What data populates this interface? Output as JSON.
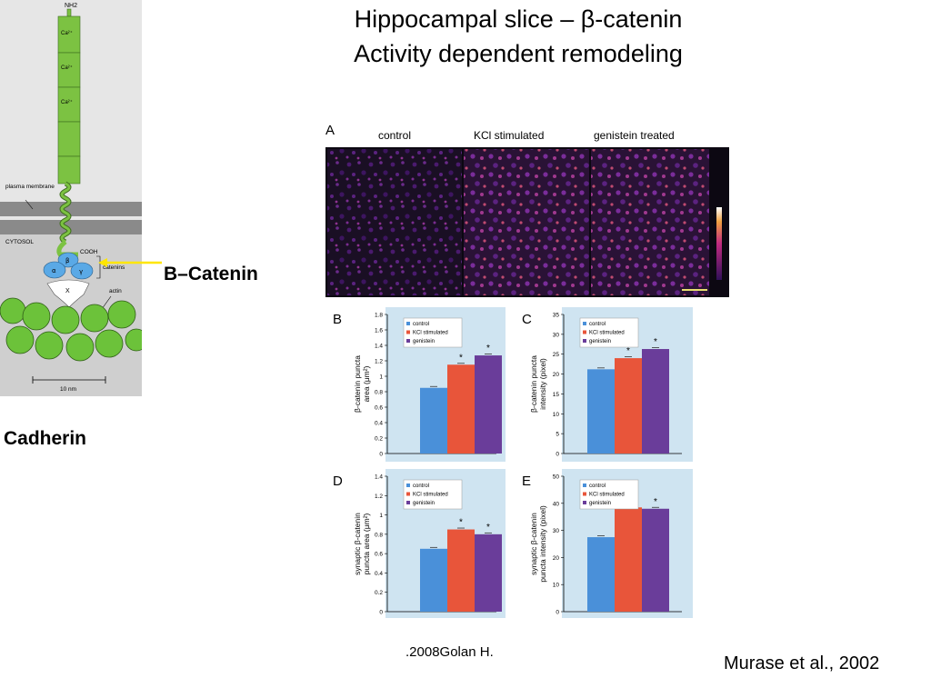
{
  "slide": {
    "title_line1": "Hippocampal slice – β-catenin",
    "title_line2": "Activity dependent remodeling",
    "beta_catenin_label": "Β–Catenin",
    "cadherin_label": "Cadherin",
    "citation_golan": ".2008Golan H.",
    "citation_murase": "Murase et al., 2002"
  },
  "diagram": {
    "nh2": "NH2",
    "ca": "Ca²⁺",
    "plasma_membrane": "plasma membrane",
    "cytosol": "CYTOSOL",
    "cooh": "COOH",
    "alpha": "α",
    "beta": "β",
    "gamma": "γ",
    "catenins": "catenins",
    "x": "X",
    "actin": "actin",
    "scale": "10 nm",
    "colors": {
      "cadherin": "#7cc242",
      "catenin": "#5aa9e6",
      "membrane": "#8a8a8a",
      "background": "#d8d8d8"
    }
  },
  "panel_a": {
    "letter": "A",
    "labels": [
      "control",
      "KCl stimulated",
      "genistein treated"
    ]
  },
  "legend_entries": [
    "control",
    "KCl stimulated",
    "genistein"
  ],
  "series_colors": [
    "#4a90d9",
    "#e8553a",
    "#6a3d9a"
  ],
  "chart_data": [
    {
      "type": "bar",
      "panel": "B",
      "ylabel": "β-catenin puncta area (μm²)",
      "categories": [
        "control",
        "KCl stimulated",
        "genistein"
      ],
      "values": [
        0.85,
        1.15,
        1.27
      ],
      "ylim": [
        0,
        1.8
      ],
      "yticks": [
        "0",
        "0.2",
        "0.4",
        "0.6",
        "0.8",
        "1",
        "1.2",
        "1.4",
        "1.6",
        "1.8"
      ],
      "significance": [
        "",
        "*",
        "*"
      ],
      "legend": "top-left"
    },
    {
      "type": "bar",
      "panel": "C",
      "ylabel": "β-catenin puncta intensity (pixel)",
      "categories": [
        "control",
        "KCl stimulated",
        "genistein"
      ],
      "values": [
        21.2,
        24,
        26.3
      ],
      "ylim": [
        0,
        35
      ],
      "yticks": [
        "0",
        "5",
        "10",
        "15",
        "20",
        "25",
        "30",
        "35"
      ],
      "significance": [
        "",
        "*",
        "*"
      ],
      "legend": "top-left"
    },
    {
      "type": "bar",
      "panel": "D",
      "ylabel": "synaptic β-catenin puncta area (μm²)",
      "categories": [
        "control",
        "KCl stimulated",
        "genistein"
      ],
      "values": [
        0.65,
        0.85,
        0.8
      ],
      "ylim": [
        0,
        1.4
      ],
      "yticks": [
        "0",
        "0.2",
        "0.4",
        "0.6",
        "0.8",
        "1",
        "1.2",
        "1.4"
      ],
      "significance": [
        "",
        "*",
        "*"
      ],
      "legend": "top-left"
    },
    {
      "type": "bar",
      "panel": "E",
      "ylabel": "synaptic β-catenin puncta intensity (pixel)",
      "categories": [
        "control",
        "KCl stimulated",
        "genistein"
      ],
      "values": [
        27.5,
        38.5,
        38
      ],
      "ylim": [
        0,
        50
      ],
      "yticks": [
        "0",
        "10",
        "20",
        "30",
        "40",
        "50"
      ],
      "significance": [
        "",
        "*",
        "*"
      ],
      "legend": "top-left"
    }
  ]
}
